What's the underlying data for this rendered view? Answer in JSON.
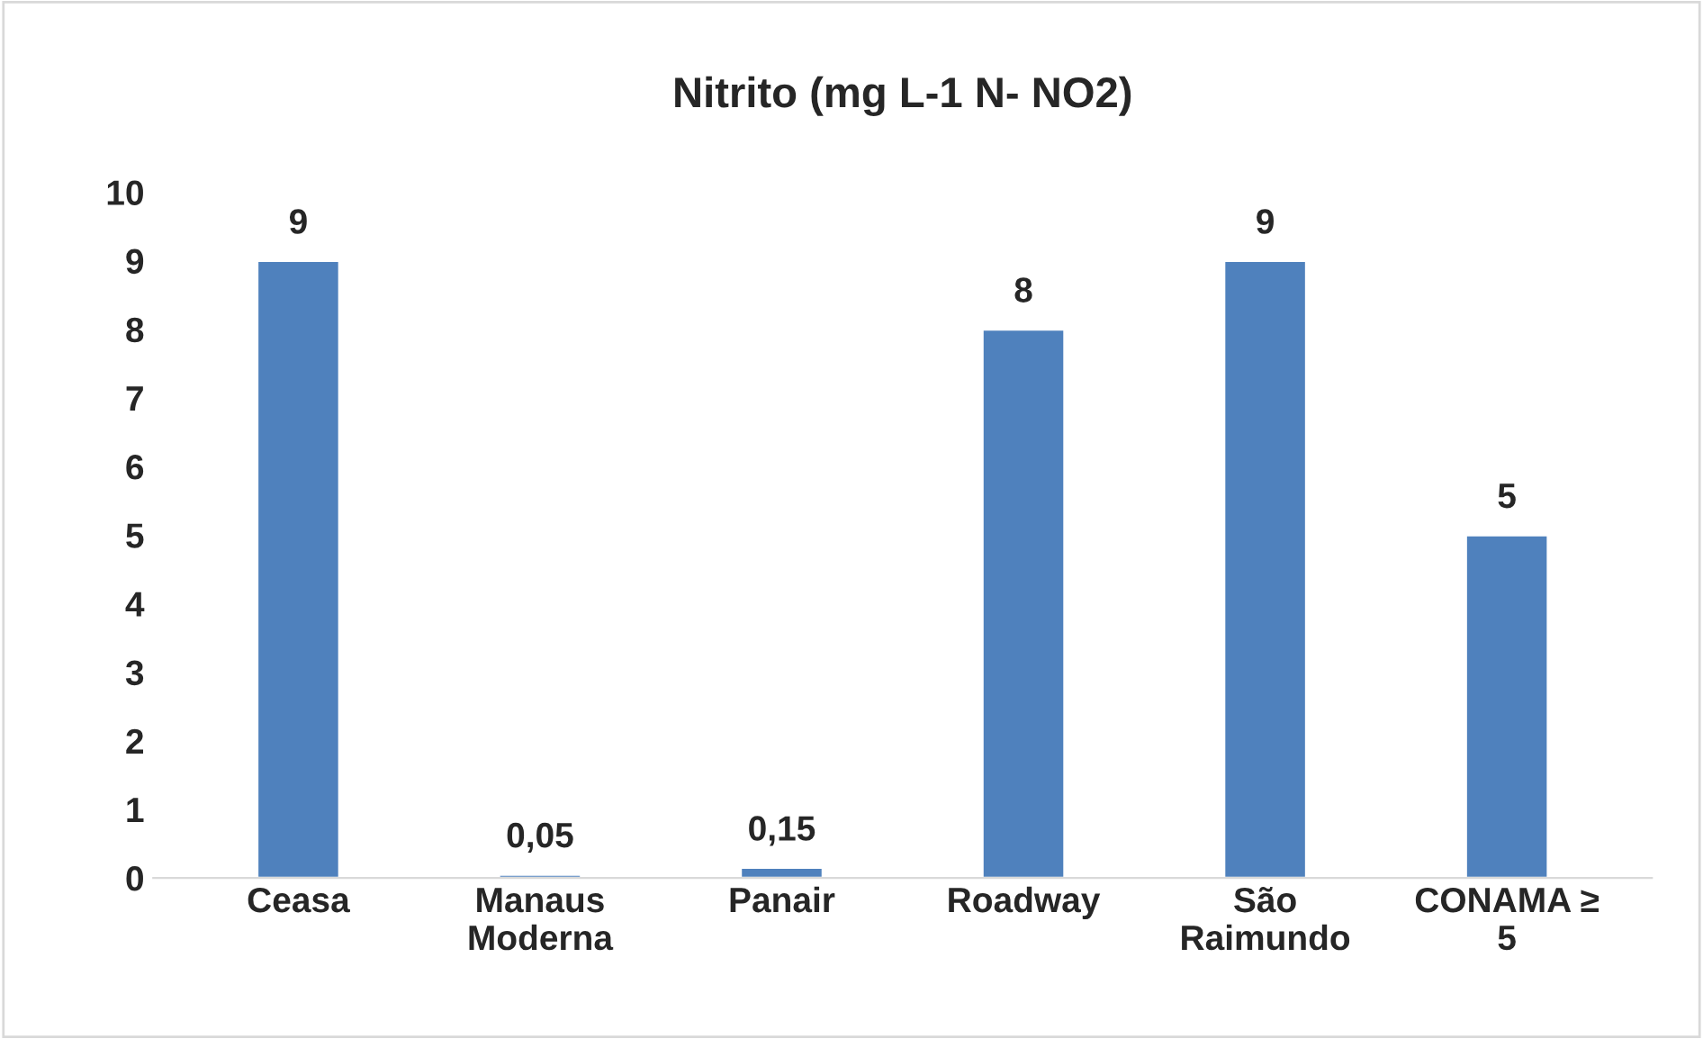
{
  "chart_data": {
    "type": "bar",
    "title": "Nitrito (mg L-1 N- NO2)",
    "categories": [
      "Ceasa",
      "Manaus\nModerna",
      "Panair",
      "Roadway",
      "São\nRaimundo",
      "CONAMA ≥\n5"
    ],
    "values": [
      9,
      0.05,
      0.15,
      8,
      9,
      5
    ],
    "value_labels": [
      "9",
      "0,05",
      "0,15",
      "8",
      "9",
      "5"
    ],
    "color": "#4f81bd",
    "ylim": [
      0,
      10
    ],
    "yticks": [
      0,
      1,
      2,
      3,
      4,
      5,
      6,
      7,
      8,
      9,
      10
    ],
    "grid": false,
    "legend": false
  }
}
